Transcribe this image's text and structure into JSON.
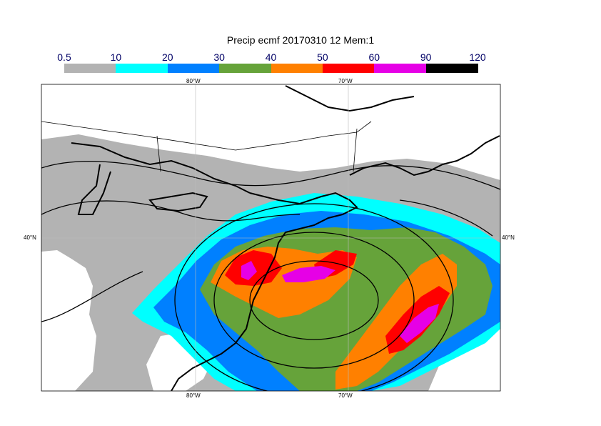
{
  "title": "Precip ecmf 20170310 12 Mem:1",
  "colorbar": {
    "labels": [
      "0.5",
      "10",
      "20",
      "30",
      "40",
      "50",
      "60",
      "90",
      "120"
    ],
    "colors": [
      "#b3b3b3",
      "#00ffff",
      "#0080ff",
      "#66a33a",
      "#ff8000",
      "#ff0000",
      "#e600e6",
      "#000000"
    ]
  },
  "axes": {
    "lon_top": [
      "80°W",
      "70°W"
    ],
    "lon_bottom": [
      "80°W",
      "70°W"
    ],
    "lat_left": "40°N",
    "lat_right": "40°N"
  },
  "colors": {
    "background": "#ffffff",
    "coast": "#000000",
    "grid": "#bbbbbb"
  }
}
